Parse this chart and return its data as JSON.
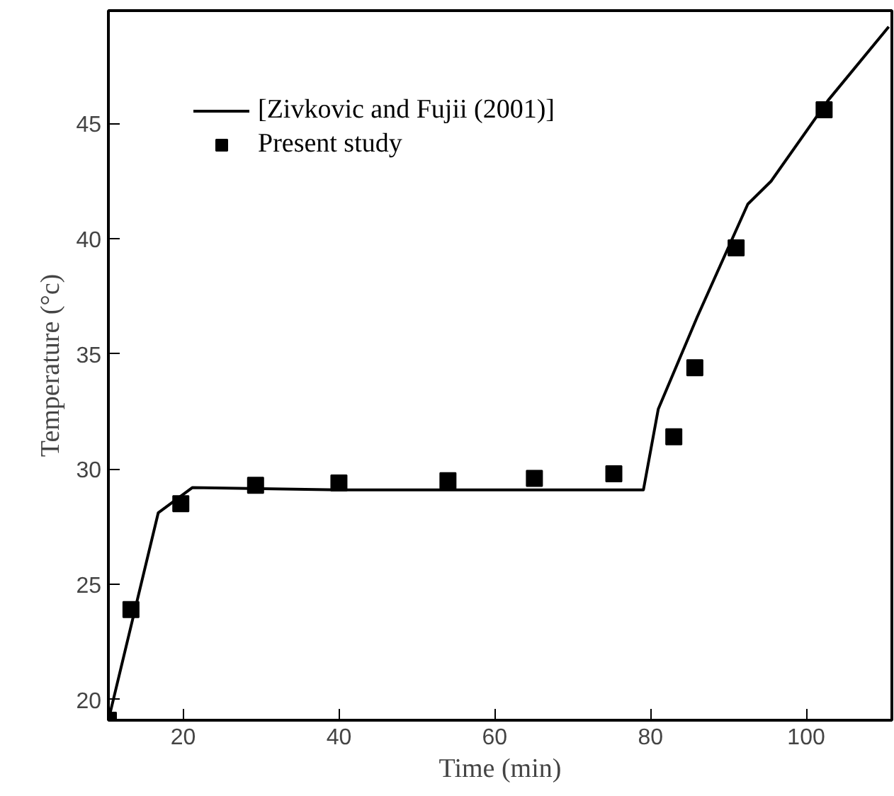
{
  "chart_data": {
    "type": "line",
    "xlabel": "Time (min)",
    "ylabel": "Temperature (°c)",
    "xlim": [
      10.4,
      111
    ],
    "ylim": [
      19.1,
      49.9
    ],
    "xticks": [
      20,
      40,
      60,
      80,
      100
    ],
    "yticks": [
      20,
      25,
      30,
      35,
      40,
      45
    ],
    "grid": false,
    "legend": "top left",
    "series": [
      {
        "name": "[Zivkovic and Fujii (2001)]",
        "color": "#000000",
        "line_style": "solid",
        "marker": "none",
        "x": [
          10.4,
          16.8,
          21.2,
          40,
          60,
          79.1,
          81,
          86,
          92.5,
          95.5,
          102.8,
          110.6
        ],
        "values": [
          19.1,
          28.1,
          29.2,
          29.1,
          29.1,
          29.1,
          32.6,
          36.6,
          41.5,
          42.5,
          46.0,
          49.2
        ]
      },
      {
        "name": "Present study",
        "type": "scatter",
        "color": "#000000",
        "marker": "square",
        "x": [
          10.4,
          13.3,
          19.7,
          29.3,
          40,
          54,
          65.1,
          75.3,
          83,
          85.7,
          91,
          102.3
        ],
        "values": [
          19.1,
          23.9,
          28.5,
          29.3,
          29.4,
          29.5,
          29.6,
          29.8,
          31.4,
          34.4,
          39.6,
          45.6
        ]
      }
    ]
  }
}
